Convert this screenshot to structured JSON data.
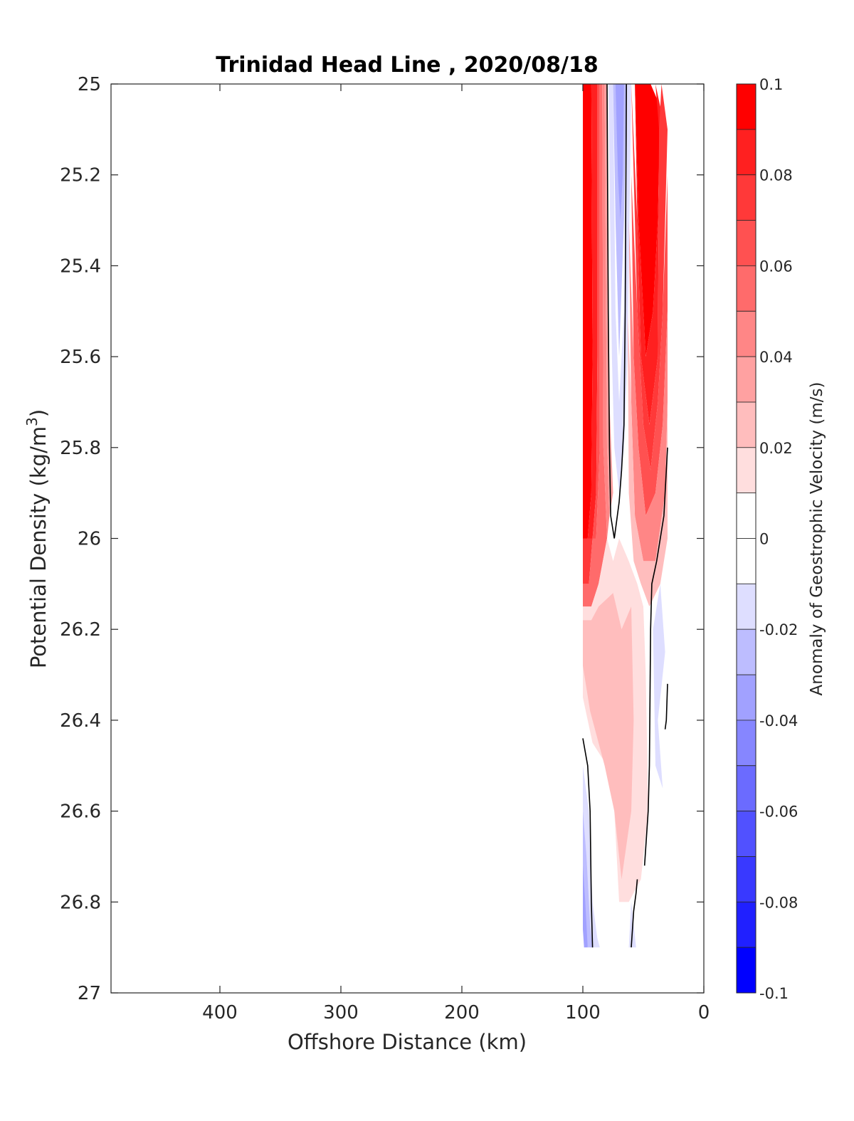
{
  "chart_data": {
    "type": "heatmap",
    "title": "Trinidad Head Line , 2020/08/18",
    "xlabel": "Offshore Distance (km)",
    "ylabel_prefix": "Potential Density (kg/m",
    "ylabel_sup": "3",
    "ylabel_suffix": ")",
    "colorbar_label": "Anomaly of Geostrophic Velocity (m/s)",
    "xlim": [
      490,
      0
    ],
    "x_reversed": true,
    "ylim": [
      25,
      27
    ],
    "y_reversed": true,
    "x_ticks": [
      {
        "value": 400,
        "label": "400"
      },
      {
        "value": 300,
        "label": "300"
      },
      {
        "value": 200,
        "label": "200"
      },
      {
        "value": 100,
        "label": "100"
      },
      {
        "value": 0,
        "label": "0"
      }
    ],
    "y_ticks": [
      {
        "value": 25,
        "label": "25"
      },
      {
        "value": 25.2,
        "label": "25.2"
      },
      {
        "value": 25.4,
        "label": "25.4"
      },
      {
        "value": 25.6,
        "label": "25.6"
      },
      {
        "value": 25.8,
        "label": "25.8"
      },
      {
        "value": 26,
        "label": "26"
      },
      {
        "value": 26.2,
        "label": "26.2"
      },
      {
        "value": 26.4,
        "label": "26.4"
      },
      {
        "value": 26.6,
        "label": "26.6"
      },
      {
        "value": 26.8,
        "label": "26.8"
      },
      {
        "value": 27,
        "label": "27"
      }
    ],
    "colorbar_range": [
      -0.1,
      0.1
    ],
    "colorbar_ticks": [
      {
        "value": 0.1,
        "label": "0.1"
      },
      {
        "value": 0.08,
        "label": "0.08"
      },
      {
        "value": 0.06,
        "label": "0.06"
      },
      {
        "value": 0.04,
        "label": "0.04"
      },
      {
        "value": 0.02,
        "label": "0.02"
      },
      {
        "value": 0,
        "label": "0"
      },
      {
        "value": -0.02,
        "label": "-0.02"
      },
      {
        "value": -0.04,
        "label": "-0.04"
      },
      {
        "value": -0.06,
        "label": "-0.06"
      },
      {
        "value": -0.08,
        "label": "-0.08"
      },
      {
        "value": -0.1,
        "label": "-0.1"
      }
    ],
    "colorbar_levels": [
      {
        "from": 0.09,
        "to": 0.1,
        "color": "#ff0000"
      },
      {
        "from": 0.08,
        "to": 0.09,
        "color": "#ff2020"
      },
      {
        "from": 0.07,
        "to": 0.08,
        "color": "#ff3939"
      },
      {
        "from": 0.06,
        "to": 0.07,
        "color": "#ff5151"
      },
      {
        "from": 0.05,
        "to": 0.06,
        "color": "#ff6b6b"
      },
      {
        "from": 0.04,
        "to": 0.05,
        "color": "#ff8686"
      },
      {
        "from": 0.03,
        "to": 0.04,
        "color": "#ffa1a1"
      },
      {
        "from": 0.02,
        "to": 0.03,
        "color": "#ffbdbd"
      },
      {
        "from": 0.01,
        "to": 0.02,
        "color": "#ffdede"
      },
      {
        "from": 0.0,
        "to": 0.01,
        "color": "#ffffff"
      },
      {
        "from": -0.01,
        "to": 0.0,
        "color": "#ffffff"
      },
      {
        "from": -0.02,
        "to": -0.01,
        "color": "#dedeff"
      },
      {
        "from": -0.03,
        "to": -0.02,
        "color": "#bdbdff"
      },
      {
        "from": -0.04,
        "to": -0.03,
        "color": "#a1a1ff"
      },
      {
        "from": -0.05,
        "to": -0.04,
        "color": "#8686ff"
      },
      {
        "from": -0.06,
        "to": -0.05,
        "color": "#6b6bff"
      },
      {
        "from": -0.07,
        "to": -0.06,
        "color": "#5151ff"
      },
      {
        "from": -0.08,
        "to": -0.07,
        "color": "#3939ff"
      },
      {
        "from": -0.09,
        "to": -0.08,
        "color": "#2020ff"
      },
      {
        "from": -0.1,
        "to": -0.09,
        "color": "#0000ff"
      }
    ],
    "regions": [
      {
        "value": 0.095,
        "points": [
          [
            100,
            25
          ],
          [
            93,
            25
          ],
          [
            92,
            25.6
          ],
          [
            93,
            25.9
          ],
          [
            96,
            26.0
          ],
          [
            100,
            26.0
          ]
        ]
      },
      {
        "value": 0.085,
        "points": [
          [
            93,
            25
          ],
          [
            88,
            25
          ],
          [
            88,
            25.6
          ],
          [
            89,
            25.9
          ],
          [
            92,
            26.0
          ],
          [
            96,
            26.0
          ],
          [
            93,
            25.9
          ],
          [
            92,
            25.6
          ]
        ]
      },
      {
        "value": 0.075,
        "points": [
          [
            100,
            26.0
          ],
          [
            96,
            26.0
          ],
          [
            92,
            26.0
          ],
          [
            95,
            26.1
          ],
          [
            100,
            26.1
          ]
        ]
      },
      {
        "value": 0.065,
        "points": [
          [
            88,
            25
          ],
          [
            86,
            25
          ],
          [
            86,
            25.8
          ],
          [
            89,
            26.0
          ],
          [
            92,
            26.0
          ],
          [
            89,
            25.9
          ],
          [
            88,
            25.6
          ]
        ]
      },
      {
        "value": 0.055,
        "points": [
          [
            100,
            26.1
          ],
          [
            95,
            26.1
          ],
          [
            92,
            26.0
          ],
          [
            89,
            26.0
          ],
          [
            86,
            25.8
          ],
          [
            86,
            25
          ],
          [
            84,
            25
          ],
          [
            83,
            25.8
          ],
          [
            80,
            26.0
          ],
          [
            87,
            26.1
          ],
          [
            93,
            26.15
          ],
          [
            100,
            26.15
          ]
        ]
      },
      {
        "value": 0.045,
        "points": [
          [
            84,
            25
          ],
          [
            82,
            25
          ],
          [
            80,
            25.8
          ],
          [
            78,
            25.95
          ],
          [
            80,
            26.0
          ],
          [
            83,
            25.8
          ]
        ]
      },
      {
        "value": 0.035,
        "points": [
          [
            82,
            25
          ],
          [
            80,
            25
          ],
          [
            78,
            25.7
          ],
          [
            75,
            25.9
          ],
          [
            78,
            25.95
          ],
          [
            80,
            25.8
          ]
        ]
      },
      {
        "value": 0.015,
        "points": [
          [
            100,
            26.15
          ],
          [
            93,
            26.15
          ],
          [
            87,
            26.1
          ],
          [
            80,
            26.0
          ],
          [
            75,
            26.05
          ],
          [
            70,
            26.0
          ],
          [
            62,
            26.05
          ],
          [
            55,
            26.1
          ],
          [
            50,
            26.15
          ],
          [
            48,
            26.3
          ],
          [
            46,
            26.6
          ],
          [
            52,
            26.75
          ],
          [
            62,
            26.8
          ],
          [
            70,
            26.8
          ],
          [
            74,
            26.6
          ],
          [
            80,
            26.5
          ],
          [
            92,
            26.45
          ],
          [
            100,
            26.35
          ]
        ]
      },
      {
        "value": 0.025,
        "points": [
          [
            100,
            26.18
          ],
          [
            93,
            26.18
          ],
          [
            87,
            26.15
          ],
          [
            75,
            26.12
          ],
          [
            68,
            26.2
          ],
          [
            60,
            26.15
          ],
          [
            58,
            26.4
          ],
          [
            60,
            26.6
          ],
          [
            68,
            26.75
          ],
          [
            74,
            26.6
          ],
          [
            82,
            26.5
          ],
          [
            94,
            26.38
          ],
          [
            100,
            26.28
          ]
        ]
      },
      {
        "value": -0.015,
        "points": [
          [
            100,
            26.5
          ],
          [
            95,
            26.6
          ],
          [
            92,
            26.8
          ],
          [
            88,
            26.88
          ],
          [
            86,
            26.9
          ],
          [
            94,
            26.9
          ],
          [
            100,
            26.85
          ]
        ]
      },
      {
        "value": -0.025,
        "points": [
          [
            100,
            26.6
          ],
          [
            97,
            26.7
          ],
          [
            94,
            26.85
          ],
          [
            92,
            26.9
          ],
          [
            96,
            26.9
          ],
          [
            100,
            26.82
          ]
        ]
      },
      {
        "value": -0.035,
        "points": [
          [
            100,
            26.72
          ],
          [
            98,
            26.8
          ],
          [
            96,
            26.9
          ],
          [
            99,
            26.9
          ],
          [
            100,
            26.86
          ]
        ]
      },
      {
        "value": -0.015,
        "points": [
          [
            79,
            25
          ],
          [
            76,
            25.6
          ],
          [
            74,
            25.8
          ],
          [
            70,
            25.9
          ],
          [
            66,
            25.8
          ],
          [
            63,
            25.6
          ],
          [
            60,
            25
          ],
          [
            64,
            25
          ],
          [
            66,
            25.5
          ],
          [
            70,
            25.7
          ],
          [
            73,
            25.5
          ],
          [
            75,
            25
          ]
        ]
      },
      {
        "value": -0.025,
        "points": [
          [
            75,
            25
          ],
          [
            73,
            25.3
          ],
          [
            70,
            25.6
          ],
          [
            66,
            25.3
          ],
          [
            64,
            25
          ]
        ]
      },
      {
        "value": -0.035,
        "points": [
          [
            73,
            25
          ],
          [
            71,
            25.2
          ],
          [
            69,
            25.3
          ],
          [
            67,
            25.2
          ],
          [
            66,
            25
          ]
        ]
      },
      {
        "value": -0.015,
        "points": [
          [
            36,
            26.1
          ],
          [
            32,
            26.25
          ],
          [
            38,
            26.4
          ],
          [
            34,
            26.55
          ],
          [
            40,
            26.5
          ],
          [
            42,
            26.2
          ]
        ]
      },
      {
        "value": -0.015,
        "points": [
          [
            60,
            26.8
          ],
          [
            56,
            26.9
          ],
          [
            62,
            26.9
          ]
        ]
      },
      {
        "value": 0.095,
        "points": [
          [
            57,
            25
          ],
          [
            44,
            25
          ],
          [
            36,
            25.05
          ],
          [
            38,
            25.3
          ],
          [
            42,
            25.5
          ],
          [
            48,
            25.6
          ],
          [
            54,
            25.3
          ]
        ]
      },
      {
        "value": 0.085,
        "points": [
          [
            57,
            25
          ],
          [
            54,
            25.3
          ],
          [
            48,
            25.6
          ],
          [
            42,
            25.5
          ],
          [
            38,
            25.3
          ],
          [
            36,
            25.05
          ],
          [
            40,
            25
          ],
          [
            37,
            25.1
          ],
          [
            38,
            25.6
          ],
          [
            45,
            25.75
          ],
          [
            52,
            25.6
          ],
          [
            55,
            25.3
          ]
        ]
      },
      {
        "value": 0.075,
        "points": [
          [
            60,
            25
          ],
          [
            58,
            25.2
          ],
          [
            55,
            25.5
          ],
          [
            50,
            25.75
          ],
          [
            44,
            25.85
          ],
          [
            38,
            25.7
          ],
          [
            34,
            25.5
          ],
          [
            30,
            25.1
          ],
          [
            35,
            25
          ],
          [
            37,
            25.1
          ],
          [
            38,
            25.6
          ],
          [
            45,
            25.75
          ],
          [
            52,
            25.6
          ],
          [
            55,
            25.3
          ]
        ]
      },
      {
        "value": 0.065,
        "points": [
          [
            60,
            25.2
          ],
          [
            58,
            25.6
          ],
          [
            54,
            25.8
          ],
          [
            48,
            25.95
          ],
          [
            40,
            25.9
          ],
          [
            34,
            25.75
          ],
          [
            30,
            25.5
          ],
          [
            30,
            25.2
          ],
          [
            34,
            25.5
          ],
          [
            38,
            25.7
          ],
          [
            44,
            25.85
          ],
          [
            50,
            25.75
          ],
          [
            55,
            25.5
          ]
        ]
      },
      {
        "value": 0.045,
        "points": [
          [
            62,
            25.3
          ],
          [
            60,
            25.7
          ],
          [
            57,
            25.95
          ],
          [
            50,
            26.05
          ],
          [
            40,
            26.05
          ],
          [
            32,
            25.9
          ],
          [
            30,
            25.7
          ],
          [
            30,
            25.5
          ],
          [
            34,
            25.75
          ],
          [
            40,
            25.9
          ],
          [
            48,
            25.95
          ],
          [
            54,
            25.8
          ],
          [
            58,
            25.6
          ]
        ]
      },
      {
        "value": 0.025,
        "points": [
          [
            63,
            25.5
          ],
          [
            62,
            25.9
          ],
          [
            58,
            26.05
          ],
          [
            52,
            26.1
          ],
          [
            45,
            26.15
          ],
          [
            36,
            26.1
          ],
          [
            30,
            26.0
          ],
          [
            30,
            25.7
          ],
          [
            32,
            25.9
          ],
          [
            40,
            26.05
          ],
          [
            50,
            26.05
          ],
          [
            57,
            25.95
          ],
          [
            60,
            25.7
          ]
        ]
      }
    ],
    "contour_lines": [
      [
        [
          80,
          25
        ],
        [
          79,
          25.5
        ],
        [
          78,
          25.8
        ],
        [
          77,
          25.95
        ],
        [
          74,
          26.0
        ]
      ],
      [
        [
          74,
          26.0
        ],
        [
          72,
          25.96
        ],
        [
          70,
          25.92
        ],
        [
          68,
          25.85
        ],
        [
          66,
          25.75
        ],
        [
          65,
          25.5
        ],
        [
          64,
          25
        ]
      ],
      [
        [
          30,
          25.8
        ],
        [
          31,
          25.85
        ],
        [
          33,
          25.95
        ],
        [
          39,
          26.05
        ],
        [
          43,
          26.1
        ],
        [
          44,
          26.2
        ],
        [
          45,
          26.5
        ],
        [
          46,
          26.6
        ],
        [
          49,
          26.72
        ]
      ],
      [
        [
          30,
          26.32
        ],
        [
          31,
          26.4
        ],
        [
          32,
          26.42
        ]
      ],
      [
        [
          100,
          26.44
        ],
        [
          96,
          26.5
        ],
        [
          94,
          26.6
        ],
        [
          93,
          26.8
        ],
        [
          92,
          26.9
        ]
      ],
      [
        [
          55,
          26.75
        ],
        [
          56,
          26.78
        ],
        [
          58,
          26.82
        ],
        [
          60,
          26.9
        ]
      ]
    ]
  }
}
